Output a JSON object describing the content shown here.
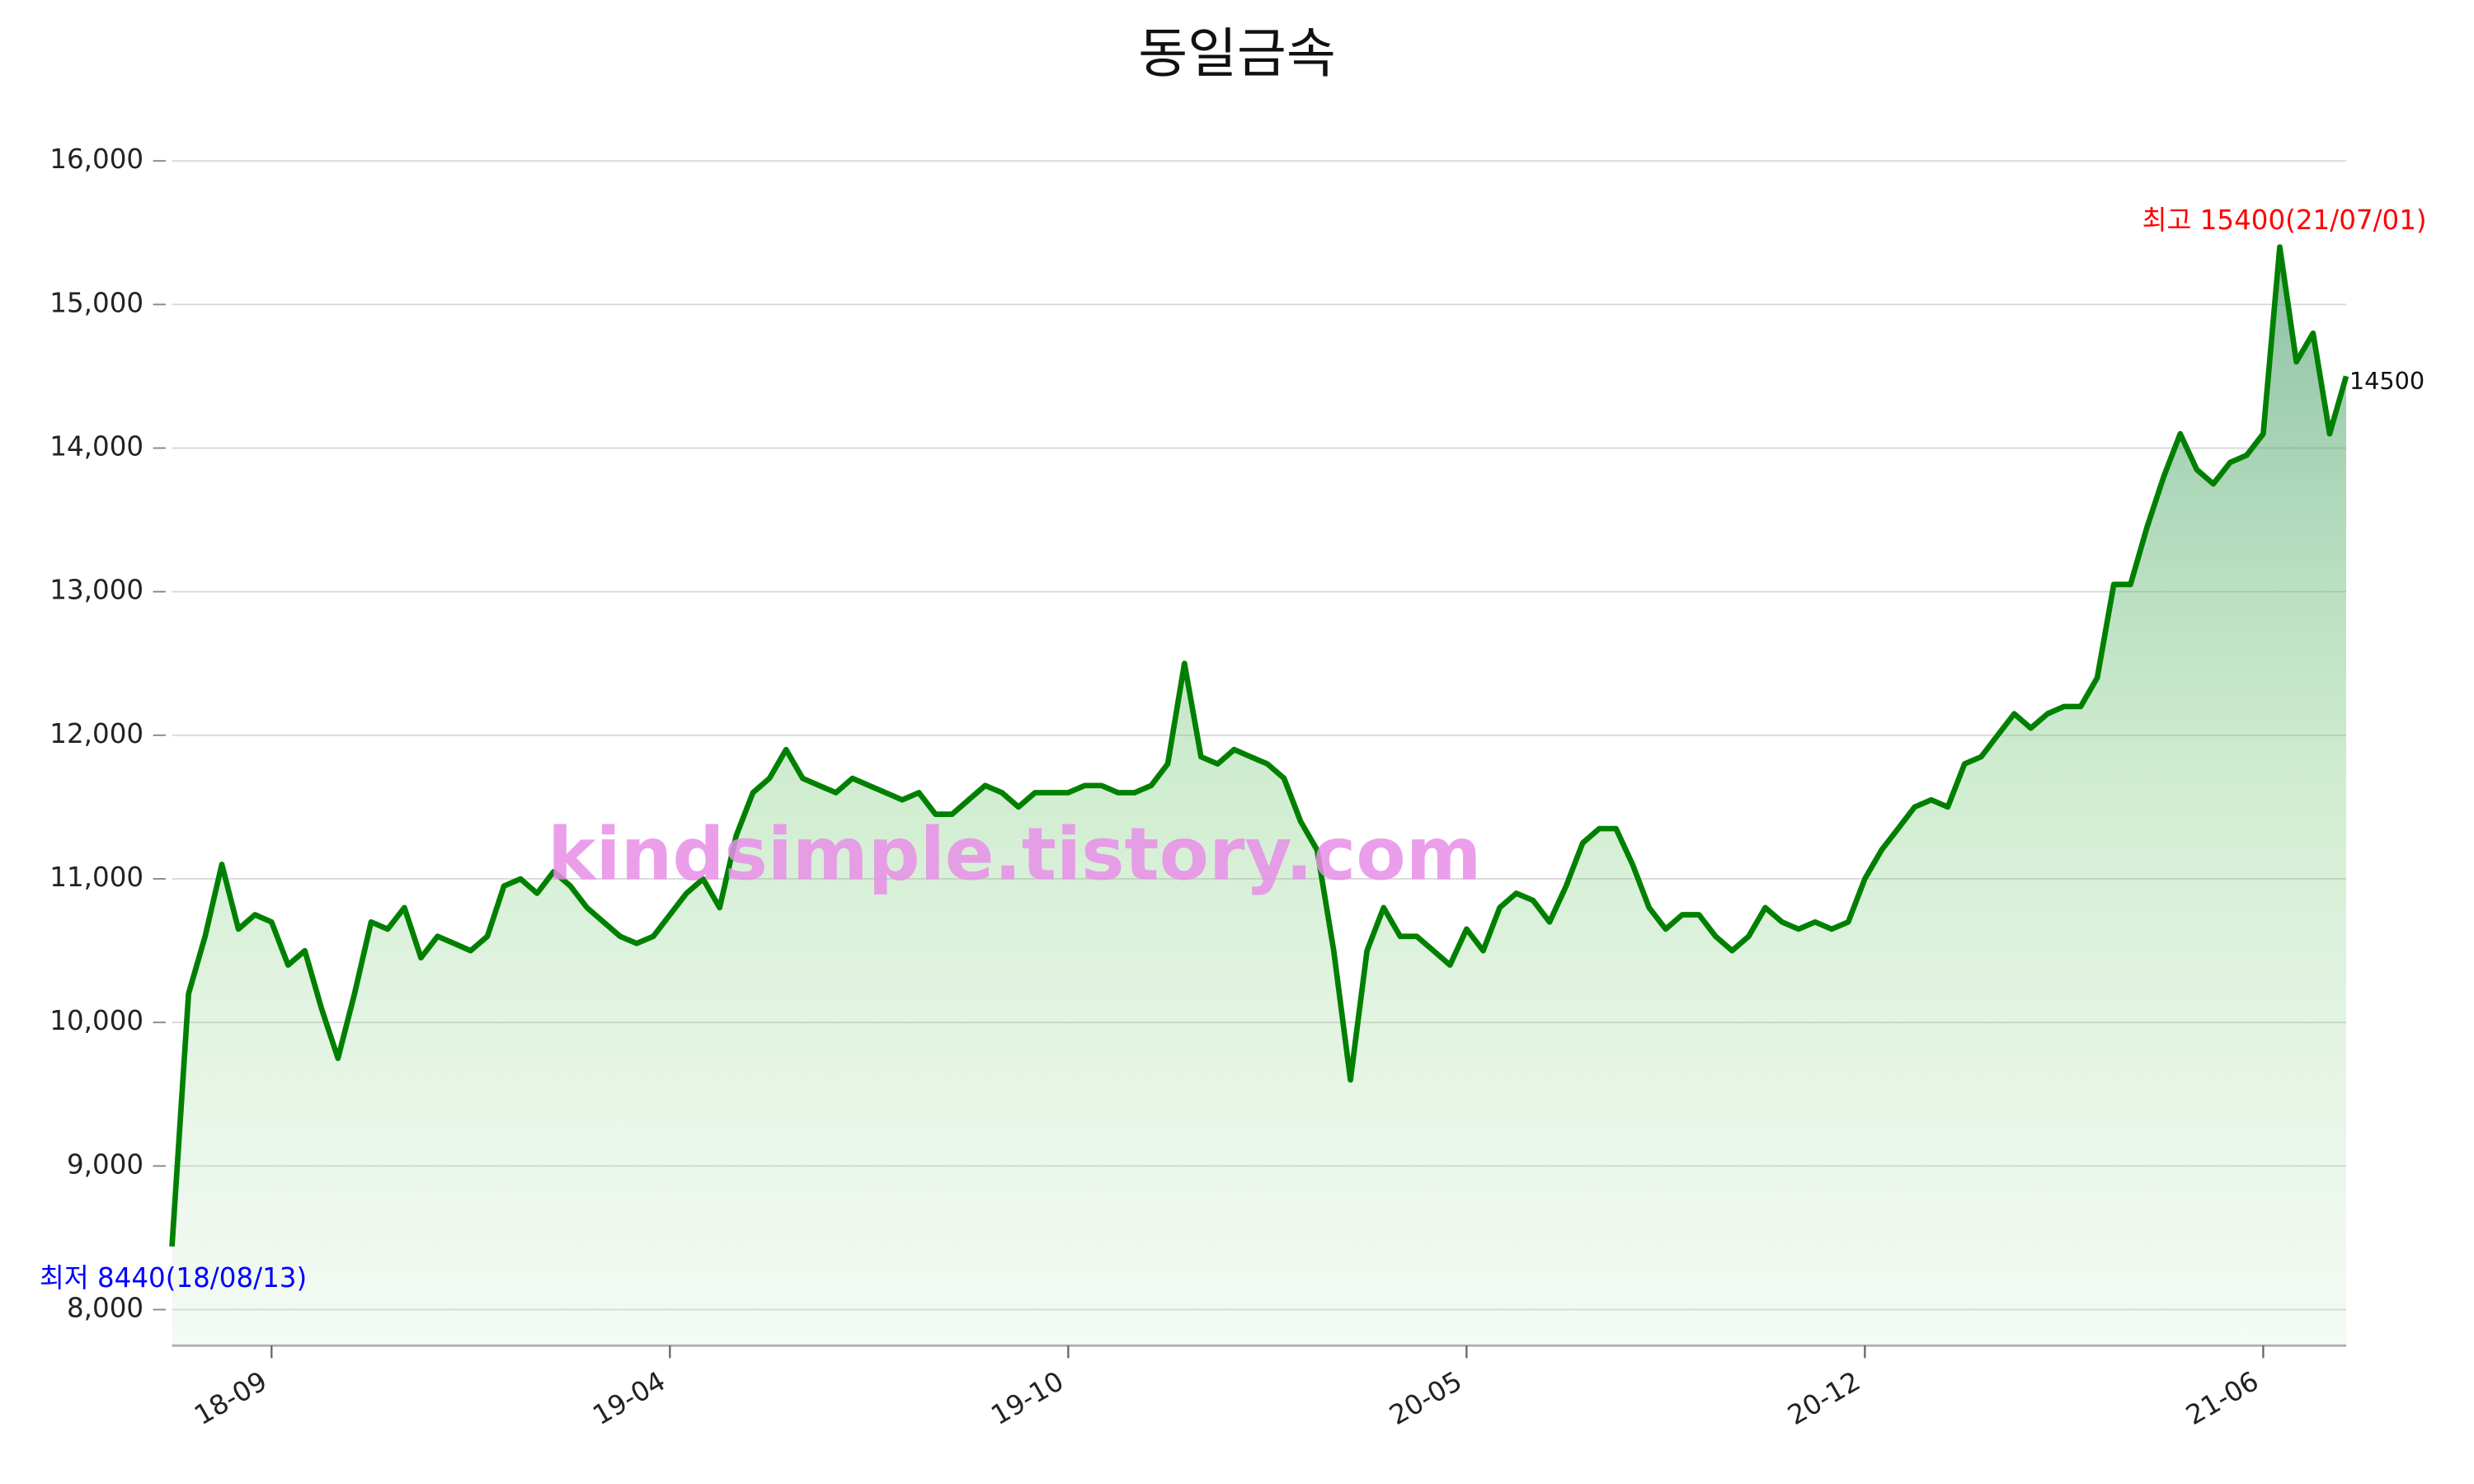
{
  "chart_data": {
    "type": "line",
    "title": "동일금속",
    "categories": [
      null,
      null,
      null,
      null,
      null,
      null,
      "18-09",
      null,
      null,
      null,
      null,
      null,
      null,
      null,
      null,
      null,
      null,
      null,
      null,
      null,
      null,
      null,
      null,
      null,
      null,
      null,
      null,
      null,
      null,
      null,
      "19-04",
      null,
      null,
      null,
      null,
      null,
      null,
      null,
      null,
      null,
      null,
      null,
      null,
      null,
      null,
      null,
      null,
      null,
      null,
      null,
      null,
      null,
      null,
      null,
      "19-10",
      null,
      null,
      null,
      null,
      null,
      null,
      null,
      null,
      null,
      null,
      null,
      null,
      null,
      null,
      null,
      null,
      null,
      null,
      null,
      null,
      null,
      null,
      null,
      "20-05",
      null,
      null,
      null,
      null,
      null,
      null,
      null,
      null,
      null,
      null,
      null,
      null,
      null,
      null,
      null,
      null,
      null,
      null,
      null,
      null,
      null,
      null,
      null,
      "20-12",
      null,
      null,
      null,
      null,
      null,
      null,
      null,
      null,
      null,
      null,
      null,
      null,
      null,
      null,
      null,
      null,
      null,
      null,
      null,
      null,
      null,
      null,
      null,
      "21-06",
      null,
      null,
      null,
      null,
      null
    ],
    "series": [
      {
        "name": "동일금속",
        "color": "#008000",
        "values": [
          8440,
          10200,
          10600,
          11100,
          10650,
          10750,
          10700,
          10400,
          10500,
          10100,
          9750,
          10200,
          10700,
          10650,
          10800,
          10450,
          10600,
          10550,
          10500,
          10600,
          10950,
          11000,
          10900,
          11050,
          10950,
          10800,
          10700,
          10600,
          10550,
          10600,
          10750,
          10900,
          11000,
          10800,
          11300,
          11600,
          11700,
          11900,
          11700,
          11650,
          11600,
          11700,
          11650,
          11600,
          11550,
          11600,
          11450,
          11450,
          11550,
          11650,
          11600,
          11500,
          11600,
          11600,
          11600,
          11650,
          11650,
          11600,
          11600,
          11650,
          11800,
          12500,
          11850,
          11800,
          11900,
          11850,
          11800,
          11700,
          11400,
          11200,
          10500,
          9600,
          10500,
          10800,
          10600,
          10600,
          10500,
          10400,
          10650,
          10500,
          10800,
          10900,
          10850,
          10700,
          10950,
          11250,
          11350,
          11350,
          11100,
          10800,
          10650,
          10750,
          10750,
          10600,
          10500,
          10600,
          10800,
          10700,
          10650,
          10700,
          10650,
          10700,
          11000,
          11200,
          11350,
          11500,
          11550,
          11500,
          11800,
          11850,
          12000,
          12150,
          12050,
          12150,
          12200,
          12200,
          12400,
          13050,
          13050,
          13450,
          13800,
          14100,
          13850,
          13750,
          13900,
          13950,
          14100,
          15400,
          14600,
          14800,
          14100,
          14500
        ]
      }
    ],
    "ylim": [
      7750,
      16000
    ],
    "yticks": [
      {
        "value": 8000,
        "label": "8,000"
      },
      {
        "value": 9000,
        "label": "9,000"
      },
      {
        "value": 10000,
        "label": "10,000"
      },
      {
        "value": 11000,
        "label": "11,000"
      },
      {
        "value": 12000,
        "label": "12,000"
      },
      {
        "value": 13000,
        "label": "13,000"
      },
      {
        "value": 14000,
        "label": "14,000"
      },
      {
        "value": 15000,
        "label": "15,000"
      },
      {
        "value": 16000,
        "label": "16,000"
      }
    ],
    "grid": true,
    "annotations": [
      {
        "text": "최고 15400(21/07/01)",
        "color": "#ff0000",
        "index": 127
      },
      {
        "text": "최저 8440(18/08/13)",
        "color": "#0000ff",
        "index": 0
      }
    ],
    "watermark": "kindsimple.tistory.com"
  }
}
